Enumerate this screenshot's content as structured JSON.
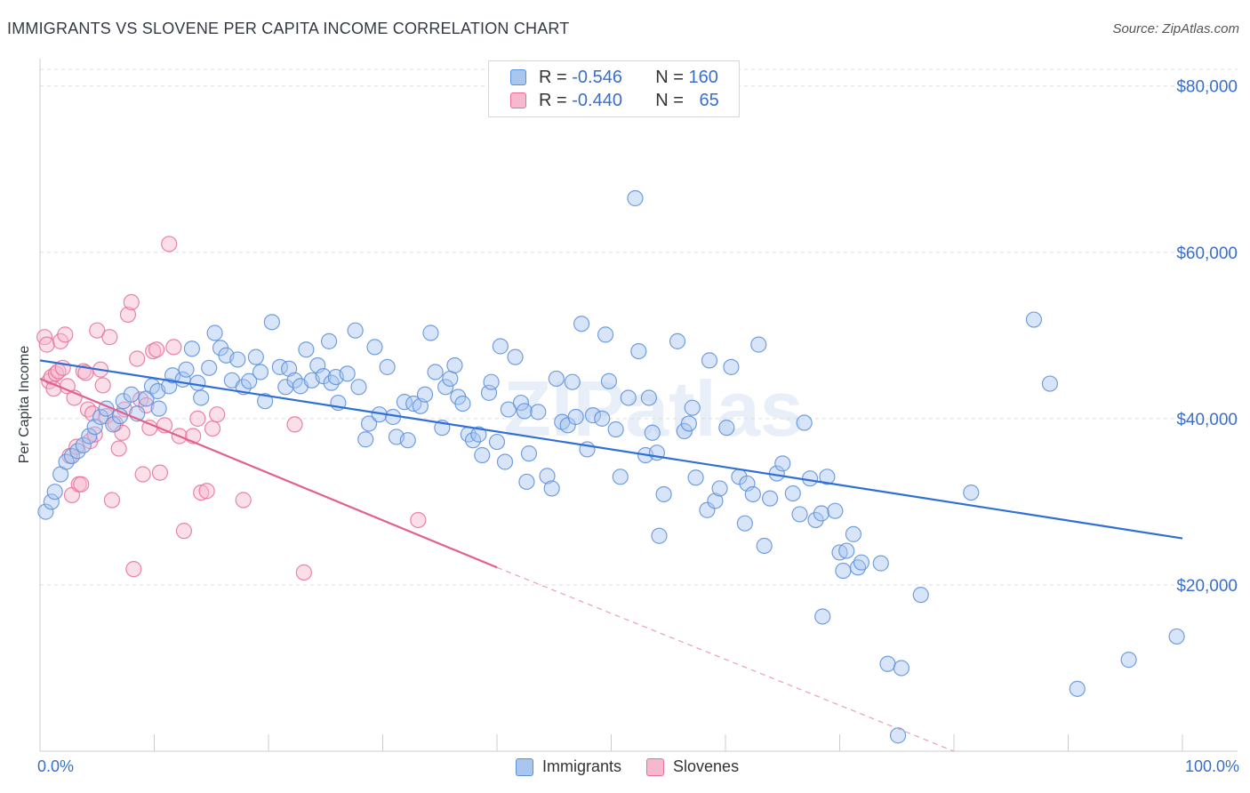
{
  "title": "IMMIGRANTS VS SLOVENE PER CAPITA INCOME CORRELATION CHART",
  "source": "Source: ZipAtlas.com",
  "watermark": "ZIPatlas",
  "legend": {
    "immigrants": {
      "r_label": "R =",
      "r_value": "-0.546",
      "n_label": "N =",
      "n_value": "160"
    },
    "slovenes": {
      "r_label": "R =",
      "r_value": "-0.440",
      "n_label": "N =",
      "n_value": "65"
    }
  },
  "colors": {
    "immigrants": "#5b8fdc",
    "immigrants_fill": "#a9c6ef",
    "slovenes": "#e76f9a",
    "slovenes_fill": "#f6b8cc",
    "axis_text": "#3a6fc7",
    "grid": "#dddddd"
  },
  "chart_data": {
    "type": "scatter",
    "title": "IMMIGRANTS VS SLOVENE PER CAPITA INCOME CORRELATION CHART",
    "xlabel": "",
    "ylabel": "Per Capita Income",
    "xlim": [
      0,
      100
    ],
    "ylim": [
      0,
      82000
    ],
    "x_tick_labels": [
      "0.0%",
      "100.0%"
    ],
    "y_tick_labels": [
      "$20,000",
      "$40,000",
      "$60,000",
      "$80,000"
    ],
    "y_ticks": [
      20000,
      40000,
      60000,
      80000
    ],
    "grid": true,
    "legend_position": "top-center",
    "series": [
      {
        "name": "Immigrants",
        "trend": {
          "x": [
            0,
            100
          ],
          "y": [
            47000,
            25600
          ]
        },
        "points": [
          [
            0.5,
            28800
          ],
          [
            1.0,
            30000
          ],
          [
            1.3,
            31200
          ],
          [
            1.8,
            33300
          ],
          [
            2.3,
            34800
          ],
          [
            2.8,
            35500
          ],
          [
            3.3,
            36100
          ],
          [
            3.8,
            36800
          ],
          [
            4.3,
            37900
          ],
          [
            4.8,
            39000
          ],
          [
            5.3,
            40200
          ],
          [
            5.8,
            41200
          ],
          [
            6.4,
            39300
          ],
          [
            7.0,
            40300
          ],
          [
            7.3,
            42100
          ],
          [
            8.0,
            42900
          ],
          [
            8.5,
            40600
          ],
          [
            9.3,
            42400
          ],
          [
            9.8,
            43900
          ],
          [
            10.3,
            43300
          ],
          [
            10.4,
            41200
          ],
          [
            11.3,
            43900
          ],
          [
            11.6,
            45200
          ],
          [
            12.5,
            44700
          ],
          [
            12.8,
            45900
          ],
          [
            13.3,
            48400
          ],
          [
            13.8,
            44300
          ],
          [
            14.1,
            42500
          ],
          [
            14.8,
            46100
          ],
          [
            15.3,
            50300
          ],
          [
            15.8,
            48500
          ],
          [
            16.3,
            47600
          ],
          [
            16.8,
            44600
          ],
          [
            17.3,
            47100
          ],
          [
            17.8,
            43800
          ],
          [
            18.3,
            44500
          ],
          [
            18.9,
            47400
          ],
          [
            19.3,
            45600
          ],
          [
            19.7,
            42100
          ],
          [
            20.3,
            51600
          ],
          [
            21.0,
            46200
          ],
          [
            21.5,
            43800
          ],
          [
            21.8,
            46000
          ],
          [
            22.3,
            44600
          ],
          [
            22.8,
            43900
          ],
          [
            23.3,
            48300
          ],
          [
            23.8,
            44600
          ],
          [
            24.3,
            46400
          ],
          [
            24.8,
            45100
          ],
          [
            25.3,
            49300
          ],
          [
            25.5,
            44300
          ],
          [
            25.9,
            45000
          ],
          [
            26.1,
            41900
          ],
          [
            26.9,
            45400
          ],
          [
            27.6,
            50600
          ],
          [
            27.9,
            43800
          ],
          [
            28.5,
            37500
          ],
          [
            28.8,
            39400
          ],
          [
            29.3,
            48600
          ],
          [
            29.7,
            40500
          ],
          [
            30.4,
            46200
          ],
          [
            30.9,
            40200
          ],
          [
            31.2,
            37800
          ],
          [
            31.9,
            42000
          ],
          [
            32.2,
            37400
          ],
          [
            32.7,
            41800
          ],
          [
            33.3,
            41500
          ],
          [
            33.7,
            42900
          ],
          [
            34.2,
            50300
          ],
          [
            34.6,
            45600
          ],
          [
            35.2,
            38900
          ],
          [
            35.5,
            43800
          ],
          [
            35.9,
            44800
          ],
          [
            36.3,
            46400
          ],
          [
            36.6,
            42600
          ],
          [
            37.0,
            41800
          ],
          [
            37.5,
            38100
          ],
          [
            37.9,
            37400
          ],
          [
            38.4,
            38100
          ],
          [
            38.7,
            35600
          ],
          [
            39.3,
            43100
          ],
          [
            39.5,
            44400
          ],
          [
            40.0,
            37200
          ],
          [
            40.3,
            48700
          ],
          [
            40.7,
            34800
          ],
          [
            41.0,
            41100
          ],
          [
            41.6,
            47400
          ],
          [
            42.1,
            41900
          ],
          [
            42.4,
            40900
          ],
          [
            42.8,
            35800
          ],
          [
            42.6,
            32400
          ],
          [
            43.6,
            40800
          ],
          [
            44.4,
            33100
          ],
          [
            44.8,
            31600
          ],
          [
            45.2,
            44800
          ],
          [
            45.7,
            39600
          ],
          [
            46.2,
            39200
          ],
          [
            46.6,
            44400
          ],
          [
            47.4,
            51400
          ],
          [
            46.9,
            40200
          ],
          [
            47.9,
            36300
          ],
          [
            48.4,
            40400
          ],
          [
            49.2,
            40000
          ],
          [
            49.5,
            50100
          ],
          [
            49.8,
            44500
          ],
          [
            50.4,
            38700
          ],
          [
            50.8,
            33000
          ],
          [
            51.5,
            42500
          ],
          [
            52.1,
            66500
          ],
          [
            52.4,
            48100
          ],
          [
            53.0,
            35600
          ],
          [
            53.3,
            42500
          ],
          [
            53.6,
            38300
          ],
          [
            54.0,
            35900
          ],
          [
            54.6,
            30900
          ],
          [
            54.2,
            25900
          ],
          [
            55.8,
            49300
          ],
          [
            56.4,
            38500
          ],
          [
            56.8,
            39400
          ],
          [
            57.4,
            32900
          ],
          [
            57.1,
            41300
          ],
          [
            58.4,
            29000
          ],
          [
            58.6,
            47000
          ],
          [
            59.1,
            30100
          ],
          [
            59.5,
            31600
          ],
          [
            60.1,
            38900
          ],
          [
            60.5,
            46200
          ],
          [
            61.2,
            33000
          ],
          [
            61.7,
            27400
          ],
          [
            61.9,
            32200
          ],
          [
            62.4,
            30900
          ],
          [
            62.9,
            48900
          ],
          [
            63.4,
            24700
          ],
          [
            63.9,
            30400
          ],
          [
            64.5,
            33400
          ],
          [
            65.0,
            34600
          ],
          [
            65.9,
            31000
          ],
          [
            66.5,
            28500
          ],
          [
            66.9,
            39500
          ],
          [
            67.4,
            32800
          ],
          [
            67.9,
            27800
          ],
          [
            68.4,
            28600
          ],
          [
            68.5,
            16200
          ],
          [
            68.9,
            33000
          ],
          [
            69.6,
            28900
          ],
          [
            70.0,
            23900
          ],
          [
            70.3,
            21700
          ],
          [
            70.6,
            24100
          ],
          [
            71.2,
            26100
          ],
          [
            71.6,
            22100
          ],
          [
            71.9,
            22700
          ],
          [
            73.6,
            22600
          ],
          [
            74.2,
            10500
          ],
          [
            75.4,
            10000
          ],
          [
            75.1,
            1900
          ],
          [
            77.1,
            18800
          ],
          [
            81.5,
            31100
          ],
          [
            87.0,
            51900
          ],
          [
            88.4,
            44200
          ],
          [
            90.8,
            7500
          ],
          [
            95.3,
            11000
          ],
          [
            99.5,
            13800
          ]
        ]
      },
      {
        "name": "Slovenes",
        "trend": {
          "x": [
            0,
            40
          ],
          "y": [
            44800,
            22100
          ]
        },
        "trend_dashed": {
          "x": [
            40,
            80
          ],
          "y": [
            22100,
            0
          ]
        },
        "points": [
          [
            0.4,
            49800
          ],
          [
            0.6,
            48900
          ],
          [
            0.8,
            44500
          ],
          [
            1.0,
            45000
          ],
          [
            1.2,
            43600
          ],
          [
            1.4,
            45400
          ],
          [
            1.6,
            45700
          ],
          [
            1.8,
            49300
          ],
          [
            2.0,
            46100
          ],
          [
            2.2,
            50100
          ],
          [
            2.4,
            43900
          ],
          [
            2.6,
            35500
          ],
          [
            2.8,
            30800
          ],
          [
            3.0,
            42500
          ],
          [
            3.2,
            36600
          ],
          [
            3.4,
            32100
          ],
          [
            3.6,
            32100
          ],
          [
            3.8,
            45700
          ],
          [
            4.0,
            45500
          ],
          [
            4.2,
            41100
          ],
          [
            4.4,
            37300
          ],
          [
            4.6,
            40600
          ],
          [
            4.8,
            38100
          ],
          [
            5.0,
            50600
          ],
          [
            5.3,
            45900
          ],
          [
            5.5,
            44000
          ],
          [
            5.8,
            40300
          ],
          [
            6.1,
            49800
          ],
          [
            6.3,
            30200
          ],
          [
            6.6,
            39400
          ],
          [
            6.9,
            36400
          ],
          [
            7.2,
            38300
          ],
          [
            7.4,
            41100
          ],
          [
            7.7,
            52500
          ],
          [
            8.0,
            54000
          ],
          [
            8.2,
            21900
          ],
          [
            8.5,
            47200
          ],
          [
            8.8,
            42300
          ],
          [
            9.0,
            33300
          ],
          [
            9.3,
            41600
          ],
          [
            9.6,
            38900
          ],
          [
            9.9,
            48100
          ],
          [
            10.2,
            48300
          ],
          [
            10.5,
            33500
          ],
          [
            10.9,
            39200
          ],
          [
            11.3,
            61000
          ],
          [
            11.7,
            48600
          ],
          [
            12.2,
            37900
          ],
          [
            12.6,
            26500
          ],
          [
            13.4,
            37900
          ],
          [
            13.8,
            40000
          ],
          [
            14.1,
            31100
          ],
          [
            14.6,
            31300
          ],
          [
            15.1,
            38800
          ],
          [
            15.5,
            40500
          ],
          [
            17.8,
            30200
          ],
          [
            22.3,
            39300
          ],
          [
            23.1,
            21500
          ],
          [
            33.1,
            27800
          ]
        ]
      }
    ]
  }
}
